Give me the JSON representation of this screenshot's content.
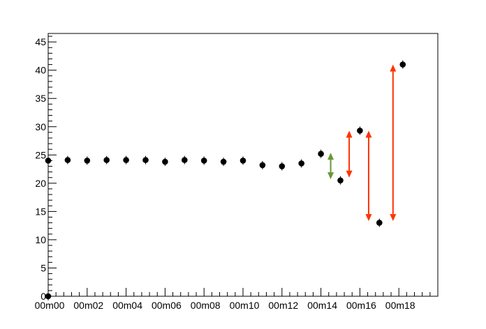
{
  "chart_data": {
    "type": "scatter",
    "title": "",
    "xlabel": "",
    "ylabel": "",
    "xlim": [
      0,
      20
    ],
    "ylim": [
      0,
      46.5
    ],
    "grid": false,
    "legend": "none",
    "x_tick_labels": [
      {
        "x": 0,
        "label": "00m00"
      },
      {
        "x": 2,
        "label": "00m02"
      },
      {
        "x": 4,
        "label": "00m04"
      },
      {
        "x": 6,
        "label": "00m06"
      },
      {
        "x": 8,
        "label": "00m08"
      },
      {
        "x": 10,
        "label": "00m10"
      },
      {
        "x": 12,
        "label": "00m12"
      },
      {
        "x": 14,
        "label": "00m14"
      },
      {
        "x": 16,
        "label": "00m16"
      },
      {
        "x": 18,
        "label": "00m18"
      }
    ],
    "y_tick_labels": [
      {
        "y": 0,
        "label": "0"
      },
      {
        "y": 5,
        "label": "5"
      },
      {
        "y": 10,
        "label": "10"
      },
      {
        "y": 15,
        "label": "15"
      },
      {
        "y": 20,
        "label": "20"
      },
      {
        "y": 25,
        "label": "25"
      },
      {
        "y": 30,
        "label": "30"
      },
      {
        "y": 35,
        "label": "35"
      },
      {
        "y": 40,
        "label": "40"
      },
      {
        "y": 45,
        "label": "45"
      }
    ],
    "points": [
      {
        "x": 0.0,
        "y": 0.0
      },
      {
        "x": 0.0,
        "y": 24.0
      },
      {
        "x": 1.0,
        "y": 24.1
      },
      {
        "x": 2.0,
        "y": 24.0
      },
      {
        "x": 3.0,
        "y": 24.1
      },
      {
        "x": 4.0,
        "y": 24.1
      },
      {
        "x": 5.0,
        "y": 24.1
      },
      {
        "x": 6.0,
        "y": 23.8
      },
      {
        "x": 7.0,
        "y": 24.1
      },
      {
        "x": 8.0,
        "y": 24.0
      },
      {
        "x": 9.0,
        "y": 23.8
      },
      {
        "x": 10.0,
        "y": 24.0
      },
      {
        "x": 11.0,
        "y": 23.2
      },
      {
        "x": 12.0,
        "y": 23.0
      },
      {
        "x": 13.0,
        "y": 23.5
      },
      {
        "x": 14.0,
        "y": 25.2
      },
      {
        "x": 15.0,
        "y": 20.5
      },
      {
        "x": 16.0,
        "y": 29.3
      },
      {
        "x": 17.0,
        "y": 13.0
      },
      {
        "x": 18.2,
        "y": 41.0
      }
    ],
    "annotations": [
      {
        "type": "double-arrow",
        "x": 14.5,
        "y1": 20.7,
        "y2": 25.4,
        "color": "#669933"
      },
      {
        "type": "double-arrow",
        "x": 15.45,
        "y1": 21.0,
        "y2": 29.3,
        "color": "#ff3300"
      },
      {
        "type": "double-arrow",
        "x": 16.45,
        "y1": 13.3,
        "y2": 29.3,
        "color": "#ff3300"
      },
      {
        "type": "double-arrow",
        "x": 17.7,
        "y1": 13.3,
        "y2": 41.0,
        "color": "#ff3300"
      }
    ],
    "marker_color": "#000000",
    "axis_color": "#000000"
  }
}
